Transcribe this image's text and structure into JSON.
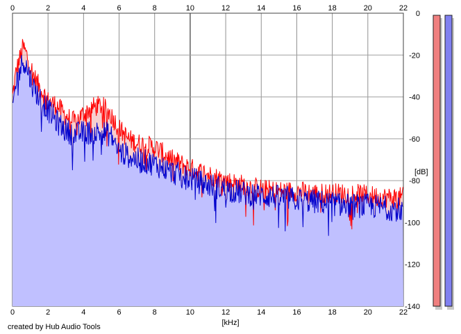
{
  "chart_data": {
    "type": "area",
    "xlabel": "[kHz]",
    "ylabel": "[dB]",
    "xlim": [
      0,
      22
    ],
    "ylim": [
      -140,
      0
    ],
    "xticks": [
      "0",
      "2",
      "4",
      "6",
      "8",
      "10",
      "12",
      "14",
      "16",
      "18",
      "20",
      "22"
    ],
    "yticks": [
      "0",
      "-20",
      "-40",
      "-60",
      "-80",
      "-100",
      "-120",
      "-140"
    ],
    "grid": true,
    "series": [
      {
        "color": "#ff0000",
        "x": [
          0,
          0.2,
          0.4,
          0.6,
          0.8,
          1.0,
          1.2,
          1.5,
          2.0,
          2.5,
          3.0,
          3.5,
          4.0,
          4.5,
          5.0,
          5.5,
          6.0,
          6.5,
          7.0,
          8.0,
          9.0,
          10.0,
          11.0,
          12.0,
          13.0,
          14.0,
          15.0,
          16.0,
          17.0,
          18.0,
          19.0,
          20.0,
          21.0,
          22.0
        ],
        "y": [
          -40,
          -28,
          -22,
          -16,
          -20,
          -25,
          -30,
          -35,
          -42,
          -44,
          -49,
          -52,
          -48,
          -45,
          -44,
          -48,
          -55,
          -60,
          -62,
          -64,
          -70,
          -74,
          -77,
          -80,
          -82,
          -84,
          -85,
          -85,
          -86,
          -86,
          -86,
          -87,
          -88,
          -88
        ]
      },
      {
        "color": "#0000cc",
        "x": [
          0,
          0.2,
          0.4,
          0.6,
          0.8,
          1.0,
          1.2,
          1.5,
          2.0,
          2.5,
          3.0,
          3.5,
          4.0,
          4.5,
          5.0,
          5.5,
          6.0,
          6.5,
          7.0,
          8.0,
          9.0,
          10.0,
          11.0,
          12.0,
          13.0,
          14.0,
          15.0,
          16.0,
          17.0,
          18.0,
          19.0,
          20.0,
          21.0,
          22.0
        ],
        "y": [
          -45,
          -33,
          -28,
          -22,
          -26,
          -31,
          -36,
          -40,
          -46,
          -52,
          -56,
          -58,
          -57,
          -57,
          -57,
          -58,
          -66,
          -68,
          -70,
          -72,
          -76,
          -79,
          -82,
          -84,
          -86,
          -87,
          -88,
          -89,
          -90,
          -91,
          -92,
          -92,
          -93,
          -94
        ]
      }
    ],
    "fill_color": "#c0c0ff",
    "meters": [
      {
        "color": "#f08080",
        "value": -140
      },
      {
        "color": "#8080f0",
        "value": -140
      }
    ]
  },
  "footer": {
    "credit": "created by Hub Audio Tools"
  }
}
